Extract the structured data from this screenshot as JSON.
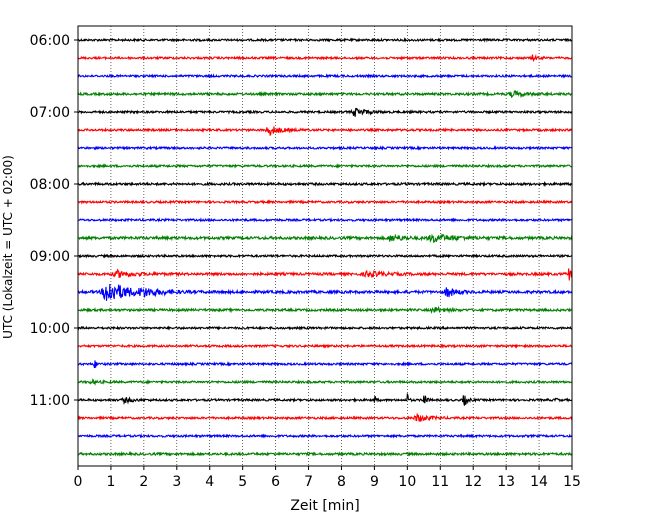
{
  "chart_data": {
    "type": "line",
    "title": "",
    "xlabel": "Zeit  [min]",
    "ylabel": "UTC (Lokalzeit = UTC + 02:00)",
    "xlim": [
      0,
      15
    ],
    "x_ticks": [
      "0",
      "1",
      "2",
      "3",
      "4",
      "5",
      "6",
      "7",
      "8",
      "9",
      "10",
      "11",
      "12",
      "13",
      "14",
      "15"
    ],
    "y_ticks": [
      {
        "label": "06:00",
        "offset_min": 0
      },
      {
        "label": "07:00",
        "offset_min": 60
      },
      {
        "label": "08:00",
        "offset_min": 120
      },
      {
        "label": "09:00",
        "offset_min": 180
      },
      {
        "label": "10:00",
        "offset_min": 240
      },
      {
        "label": "11:00",
        "offset_min": 300
      }
    ],
    "grid": "vertical dotted",
    "trace_interval_min": 15,
    "trace_colors": [
      "#000000",
      "#ff0000",
      "#0000ff",
      "#008000"
    ],
    "traces": [
      {
        "start": "06:00",
        "color": "#000000",
        "noise": 1.0,
        "events": []
      },
      {
        "start": "06:15",
        "color": "#ff0000",
        "noise": 1.0,
        "events": [
          {
            "x": 13.8,
            "amp": 2.5,
            "width": 0.2
          }
        ]
      },
      {
        "start": "06:30",
        "color": "#0000ff",
        "noise": 1.0,
        "events": []
      },
      {
        "start": "06:45",
        "color": "#008000",
        "noise": 1.1,
        "events": [
          {
            "x": 13.2,
            "amp": 2.5,
            "width": 0.6
          }
        ]
      },
      {
        "start": "07:00",
        "color": "#000000",
        "noise": 1.0,
        "events": [
          {
            "x": 8.4,
            "amp": 4,
            "width": 0.5
          }
        ]
      },
      {
        "start": "07:15",
        "color": "#ff0000",
        "noise": 1.0,
        "events": [
          {
            "x": 5.8,
            "amp": 5,
            "width": 0.5
          }
        ]
      },
      {
        "start": "07:30",
        "color": "#0000ff",
        "noise": 1.0,
        "events": []
      },
      {
        "start": "07:45",
        "color": "#008000",
        "noise": 1.0,
        "events": []
      },
      {
        "start": "08:00",
        "color": "#000000",
        "noise": 1.1,
        "events": []
      },
      {
        "start": "08:15",
        "color": "#ff0000",
        "noise": 1.0,
        "events": []
      },
      {
        "start": "08:30",
        "color": "#0000ff",
        "noise": 1.0,
        "events": []
      },
      {
        "start": "08:45",
        "color": "#008000",
        "noise": 1.3,
        "events": [
          {
            "x": 9.5,
            "amp": 3,
            "width": 0.6
          },
          {
            "x": 10.8,
            "amp": 3.5,
            "width": 1.0
          }
        ]
      },
      {
        "start": "09:00",
        "color": "#000000",
        "noise": 1.0,
        "events": []
      },
      {
        "start": "09:15",
        "color": "#ff0000",
        "noise": 1.2,
        "events": [
          {
            "x": 1.2,
            "amp": 3,
            "width": 0.8
          },
          {
            "x": 8.8,
            "amp": 2.5,
            "width": 0.8
          },
          {
            "x": 14.9,
            "amp": 7,
            "width": 0.15
          }
        ]
      },
      {
        "start": "09:30",
        "color": "#0000ff",
        "noise": 1.3,
        "events": [
          {
            "x": 0.9,
            "amp": 12,
            "width": 0.9
          },
          {
            "x": 2.0,
            "amp": 3,
            "width": 1.0
          },
          {
            "x": 11.2,
            "amp": 5,
            "width": 0.4
          }
        ]
      },
      {
        "start": "09:45",
        "color": "#008000",
        "noise": 1.1,
        "events": [
          {
            "x": 10.8,
            "amp": 2.5,
            "width": 0.5
          }
        ]
      },
      {
        "start": "10:00",
        "color": "#000000",
        "noise": 1.0,
        "events": []
      },
      {
        "start": "10:15",
        "color": "#ff0000",
        "noise": 1.0,
        "events": []
      },
      {
        "start": "10:30",
        "color": "#0000ff",
        "noise": 1.0,
        "events": [
          {
            "x": 0.5,
            "amp": 6,
            "width": 0.08
          }
        ]
      },
      {
        "start": "10:45",
        "color": "#008000",
        "noise": 1.0,
        "events": [
          {
            "x": 0.4,
            "amp": 2,
            "width": 0.3
          }
        ]
      },
      {
        "start": "11:00",
        "color": "#000000",
        "noise": 1.0,
        "events": [
          {
            "x": 1.4,
            "amp": 2.5,
            "width": 0.4
          },
          {
            "x": 9.0,
            "amp": 5,
            "width": 0.08
          },
          {
            "x": 10.0,
            "amp": 8,
            "width": 0.06
          },
          {
            "x": 10.5,
            "amp": 14,
            "width": 0.08
          },
          {
            "x": 11.7,
            "amp": 7,
            "width": 0.15
          },
          {
            "x": 14.5,
            "amp": 4,
            "width": 0.06
          }
        ]
      },
      {
        "start": "11:15",
        "color": "#ff0000",
        "noise": 1.0,
        "events": [
          {
            "x": 10.3,
            "amp": 4,
            "width": 0.5
          }
        ]
      },
      {
        "start": "11:30",
        "color": "#0000ff",
        "noise": 1.0,
        "events": []
      },
      {
        "start": "11:45",
        "color": "#008000",
        "noise": 1.1,
        "events": []
      }
    ]
  }
}
